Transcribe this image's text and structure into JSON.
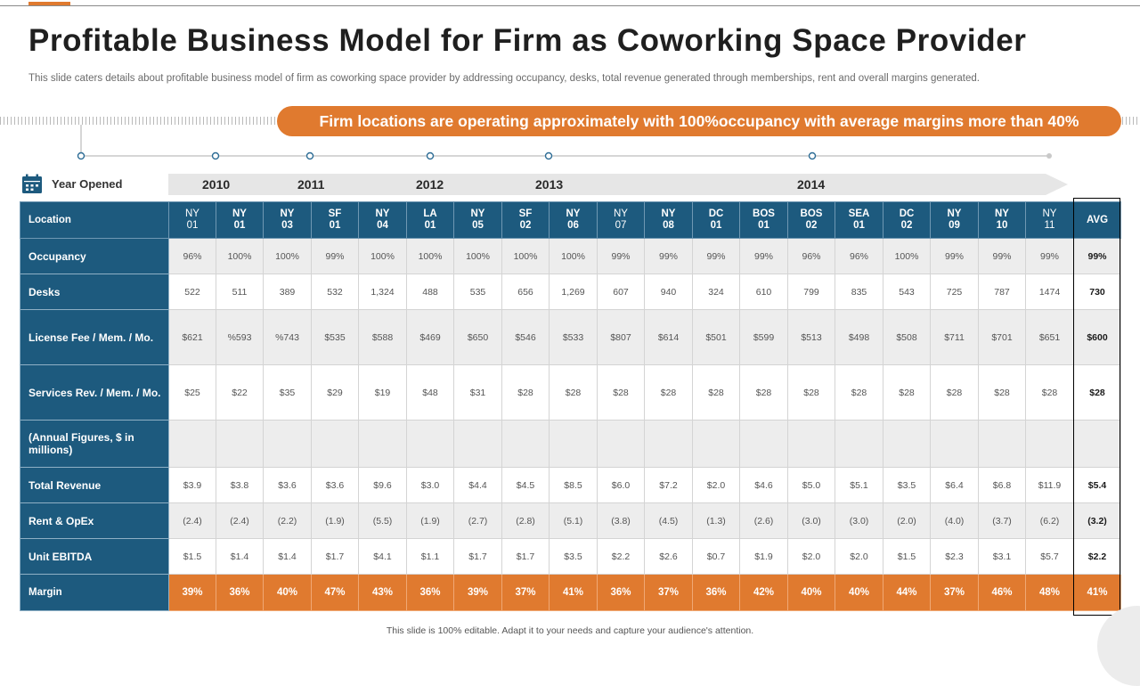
{
  "title": "Profitable Business Model for Firm as Coworking Space Provider",
  "subtitle": "This slide caters details about profitable business model of firm as coworking space provider by addressing occupancy, desks, total revenue generated through memberships, rent and overall margins generated.",
  "banner": "Firm locations are operating approximately with 100%occupancy with average margins more than 40%",
  "year_opened_label": "Year Opened",
  "years": [
    "2010",
    "2011",
    "2012",
    "2013",
    "2014"
  ],
  "table": {
    "location_label": "Location",
    "locations": [
      {
        "l1": "NY",
        "l2": "01"
      },
      {
        "l1": "NY",
        "l2": "01"
      },
      {
        "l1": "NY",
        "l2": "03"
      },
      {
        "l1": "SF",
        "l2": "01"
      },
      {
        "l1": "NY",
        "l2": "04"
      },
      {
        "l1": "LA",
        "l2": "01"
      },
      {
        "l1": "NY",
        "l2": "05"
      },
      {
        "l1": "SF",
        "l2": "02"
      },
      {
        "l1": "NY",
        "l2": "06"
      },
      {
        "l1": "NY",
        "l2": "07"
      },
      {
        "l1": "NY",
        "l2": "08"
      },
      {
        "l1": "DC",
        "l2": "01"
      },
      {
        "l1": "BOS",
        "l2": "01"
      },
      {
        "l1": "BOS",
        "l2": "02"
      },
      {
        "l1": "SEA",
        "l2": "01"
      },
      {
        "l1": "DC",
        "l2": "02"
      },
      {
        "l1": "NY",
        "l2": "09"
      },
      {
        "l1": "NY",
        "l2": "10"
      },
      {
        "l1": "NY",
        "l2": "11"
      }
    ],
    "avg_label": "AVG",
    "rows": [
      {
        "label": "Occupancy",
        "values": [
          "96%",
          "100%",
          "100%",
          "99%",
          "100%",
          "100%",
          "100%",
          "100%",
          "100%",
          "99%",
          "99%",
          "99%",
          "99%",
          "96%",
          "96%",
          "100%",
          "99%",
          "99%",
          "99%"
        ],
        "avg": "99%"
      },
      {
        "label": "Desks",
        "values": [
          "522",
          "511",
          "389",
          "532",
          "1,324",
          "488",
          "535",
          "656",
          "1,269",
          "607",
          "940",
          "324",
          "610",
          "799",
          "835",
          "543",
          "725",
          "787",
          "1474"
        ],
        "avg": "730"
      },
      {
        "label": "License Fee / Mem. / Mo.",
        "values": [
          "$621",
          "%593",
          "%743",
          "$535",
          "$588",
          "$469",
          "$650",
          "$546",
          "$533",
          "$807",
          "$614",
          "$501",
          "$599",
          "$513",
          "$498",
          "$508",
          "$711",
          "$701",
          "$651"
        ],
        "avg": "$600"
      },
      {
        "label": "Services  Rev.  / Mem. / Mo.",
        "values": [
          "$25",
          "$22",
          "$35",
          "$29",
          "$19",
          "$48",
          "$31",
          "$28",
          "$28",
          "$28",
          "$28",
          "$28",
          "$28",
          "$28",
          "$28",
          "$28",
          "$28",
          "$28",
          "$28"
        ],
        "avg": "$28"
      },
      {
        "label": "(Annual Figures, $ in millions)",
        "values": [
          "",
          "",
          "",
          "",
          "",
          "",
          "",
          "",
          "",
          "",
          "",
          "",
          "",
          "",
          "",
          "",
          "",
          "",
          ""
        ],
        "avg": ""
      },
      {
        "label": "Total Revenue",
        "values": [
          "$3.9",
          "$3.8",
          "$3.6",
          "$3.6",
          "$9.6",
          "$3.0",
          "$4.4",
          "$4.5",
          "$8.5",
          "$6.0",
          "$7.2",
          "$2.0",
          "$4.6",
          "$5.0",
          "$5.1",
          "$3.5",
          "$6.4",
          "$6.8",
          "$11.9"
        ],
        "avg": "$5.4"
      },
      {
        "label": "Rent & OpEx",
        "values": [
          "(2.4)",
          "(2.4)",
          "(2.2)",
          "(1.9)",
          "(5.5)",
          "(1.9)",
          "(2.7)",
          "(2.8)",
          "(5.1)",
          "(3.8)",
          "(4.5)",
          "(1.3)",
          "(2.6)",
          "(3.0)",
          "(3.0)",
          "(2.0)",
          "(4.0)",
          "(3.7)",
          "(6.2)"
        ],
        "avg": "(3.2)"
      },
      {
        "label": "Unit EBITDA",
        "values": [
          "$1.5",
          "$1.4",
          "$1.4",
          "$1.7",
          "$4.1",
          "$1.1",
          "$1.7",
          "$1.7",
          "$3.5",
          "$2.2",
          "$2.6",
          "$0.7",
          "$1.9",
          "$2.0",
          "$2.0",
          "$1.5",
          "$2.3",
          "$3.1",
          "$5.7"
        ],
        "avg": "$2.2"
      },
      {
        "label": "Margin",
        "values": [
          "39%",
          "36%",
          "40%",
          "47%",
          "43%",
          "36%",
          "39%",
          "37%",
          "41%",
          "36%",
          "37%",
          "36%",
          "42%",
          "40%",
          "40%",
          "44%",
          "37%",
          "46%",
          "48%"
        ],
        "avg": "41%"
      }
    ]
  },
  "footer": "This slide is 100% editable.  Adapt it to your needs and capture your audience's attention.",
  "colors": {
    "accent": "#e07a2f",
    "header_blue": "#1d5a7e",
    "stripe_gray": "#ededed"
  }
}
